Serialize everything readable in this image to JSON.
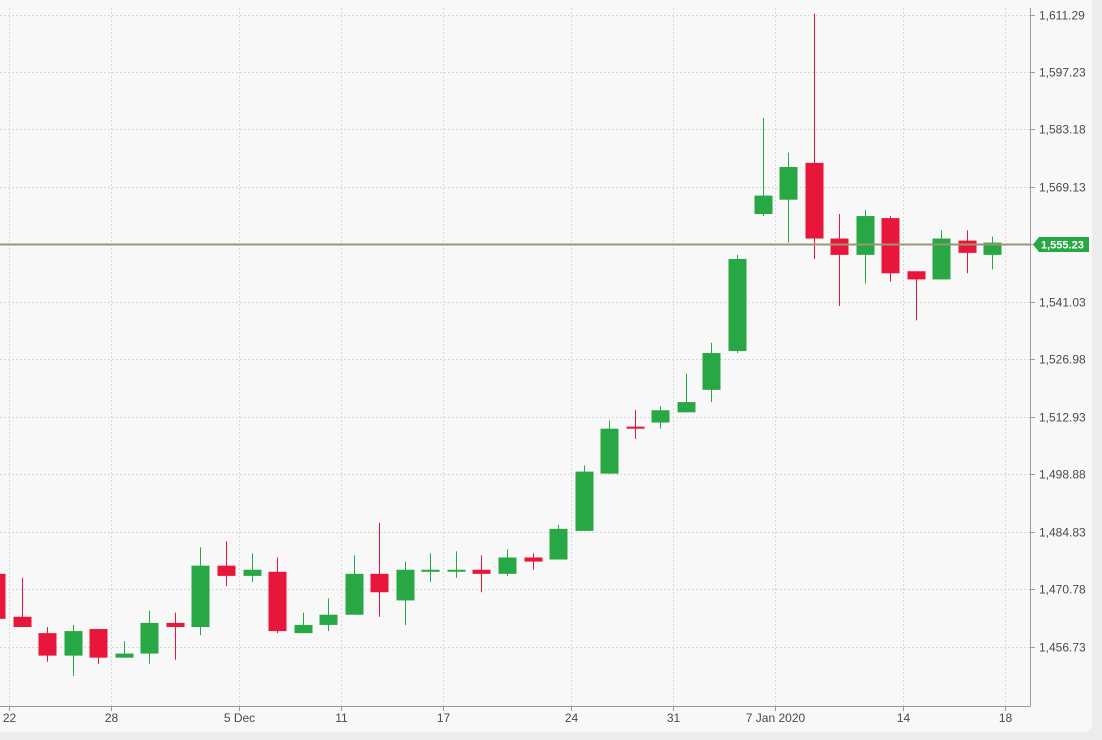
{
  "chart_data": {
    "type": "candlestick",
    "y_axis": {
      "position": "right",
      "range": [
        1443,
        1613
      ],
      "ticks": [
        1611.29,
        1597.23,
        1583.18,
        1569.13,
        1555.08,
        1541.03,
        1526.98,
        1512.93,
        1498.88,
        1484.83,
        1470.78,
        1456.73
      ],
      "tick_labels": [
        "1,611.29",
        "1,597.23",
        "1,583.18",
        "1,569.13",
        "1,555.08",
        "1,541.03",
        "1,526.98",
        "1,512.93",
        "1,498.88",
        "1,484.83",
        "1,470.78",
        "1,456.73"
      ]
    },
    "x_axis": {
      "tick_labels": [
        "22",
        "28",
        "5 Dec",
        "11",
        "17",
        "24",
        "31",
        "7 Jan 2020",
        "14",
        "18"
      ],
      "tick_index": [
        0.5,
        4.5,
        9.5,
        13.5,
        17.5,
        22.5,
        26.5,
        30.5,
        35.5,
        39.5
      ],
      "index_range": [
        -0.5,
        40.5
      ]
    },
    "current_price": {
      "value": 1555.23,
      "label": "1,555.23"
    },
    "colors": {
      "up": "#27a844",
      "down": "#e8163a",
      "price_line": "#9b9577",
      "badge": "#27a844"
    },
    "grid": true,
    "candles": [
      {
        "o": 1474.5,
        "h": 1474.5,
        "l": 1463.5,
        "c": 1463.5
      },
      {
        "o": 1464.0,
        "h": 1473.5,
        "l": 1461.5,
        "c": 1461.5
      },
      {
        "o": 1460.0,
        "h": 1461.5,
        "l": 1453.0,
        "c": 1454.5
      },
      {
        "o": 1454.5,
        "h": 1462.0,
        "l": 1449.5,
        "c": 1460.5
      },
      {
        "o": 1461.0,
        "h": 1461.0,
        "l": 1452.5,
        "c": 1454.0
      },
      {
        "o": 1454.0,
        "h": 1458.0,
        "l": 1454.0,
        "c": 1455.0
      },
      {
        "o": 1455.0,
        "h": 1465.5,
        "l": 1452.5,
        "c": 1462.5
      },
      {
        "o": 1462.5,
        "h": 1465.0,
        "l": 1453.5,
        "c": 1461.5
      },
      {
        "o": 1461.5,
        "h": 1481.0,
        "l": 1459.5,
        "c": 1476.5
      },
      {
        "o": 1476.5,
        "h": 1482.5,
        "l": 1471.5,
        "c": 1474.0
      },
      {
        "o": 1474.0,
        "h": 1479.5,
        "l": 1472.5,
        "c": 1475.5
      },
      {
        "o": 1475.0,
        "h": 1478.5,
        "l": 1460.0,
        "c": 1460.5
      },
      {
        "o": 1460.0,
        "h": 1465.0,
        "l": 1460.0,
        "c": 1462.0
      },
      {
        "o": 1462.0,
        "h": 1468.5,
        "l": 1460.5,
        "c": 1464.5
      },
      {
        "o": 1464.5,
        "h": 1479.0,
        "l": 1464.5,
        "c": 1474.5
      },
      {
        "o": 1474.5,
        "h": 1487.0,
        "l": 1464.0,
        "c": 1470.0
      },
      {
        "o": 1468.0,
        "h": 1477.5,
        "l": 1462.0,
        "c": 1475.5
      },
      {
        "o": 1475.0,
        "h": 1479.5,
        "l": 1472.5,
        "c": 1475.5
      },
      {
        "o": 1475.5,
        "h": 1480.0,
        "l": 1473.5,
        "c": 1475.5
      },
      {
        "o": 1475.5,
        "h": 1479.0,
        "l": 1470.0,
        "c": 1474.5
      },
      {
        "o": 1474.5,
        "h": 1480.5,
        "l": 1474.0,
        "c": 1478.5
      },
      {
        "o": 1478.5,
        "h": 1479.5,
        "l": 1475.5,
        "c": 1477.5
      },
      {
        "o": 1478.0,
        "h": 1486.5,
        "l": 1478.0,
        "c": 1485.5
      },
      {
        "o": 1485.0,
        "h": 1501.0,
        "l": 1485.0,
        "c": 1499.5
      },
      {
        "o": 1499.0,
        "h": 1512.0,
        "l": 1499.0,
        "c": 1510.0
      },
      {
        "o": 1510.5,
        "h": 1514.5,
        "l": 1507.5,
        "c": 1510.0
      },
      {
        "o": 1511.5,
        "h": 1515.5,
        "l": 1510.0,
        "c": 1514.5
      },
      {
        "o": 1514.0,
        "h": 1523.5,
        "l": 1514.0,
        "c": 1516.5
      },
      {
        "o": 1519.5,
        "h": 1531.0,
        "l": 1516.5,
        "c": 1528.5
      },
      {
        "o": 1529.0,
        "h": 1552.5,
        "l": 1528.5,
        "c": 1551.5
      },
      {
        "o": 1562.5,
        "h": 1586.0,
        "l": 1562.0,
        "c": 1567.0
      },
      {
        "o": 1566.0,
        "h": 1577.5,
        "l": 1555.5,
        "c": 1574.0
      },
      {
        "o": 1575.0,
        "h": 1611.5,
        "l": 1551.5,
        "c": 1556.5
      },
      {
        "o": 1556.5,
        "h": 1562.5,
        "l": 1540.0,
        "c": 1552.5
      },
      {
        "o": 1552.5,
        "h": 1563.5,
        "l": 1545.5,
        "c": 1562.0
      },
      {
        "o": 1561.5,
        "h": 1562.0,
        "l": 1546.0,
        "c": 1548.0
      },
      {
        "o": 1548.5,
        "h": 1548.5,
        "l": 1536.5,
        "c": 1546.5
      },
      {
        "o": 1546.5,
        "h": 1558.5,
        "l": 1546.5,
        "c": 1556.5
      },
      {
        "o": 1556.0,
        "h": 1558.5,
        "l": 1548.0,
        "c": 1553.0
      },
      {
        "o": 1552.5,
        "h": 1557.0,
        "l": 1549.0,
        "c": 1555.5
      }
    ]
  }
}
